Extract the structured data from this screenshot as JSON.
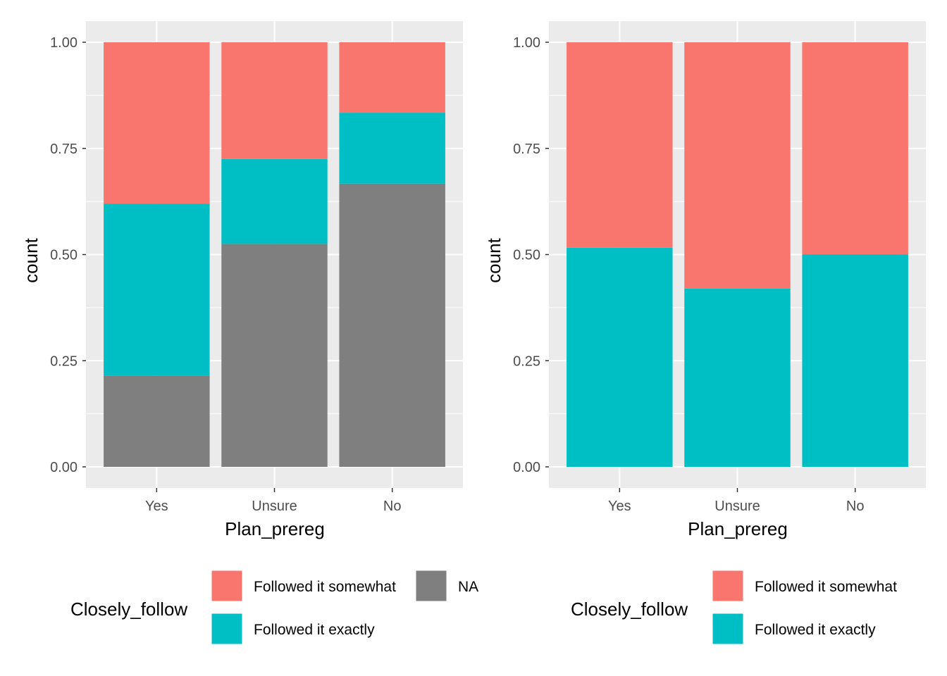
{
  "colors": {
    "somewhat": "#F8766D",
    "exactly": "#00BFC4",
    "na": "#7F7F7F",
    "panel_bg": "#EBEBEB",
    "grid": "#FFFFFF",
    "axis_text": "#4D4D4D"
  },
  "chart_data": [
    {
      "type": "bar",
      "stacked": true,
      "position": "fill",
      "title": "",
      "xlabel": "Plan_prereg",
      "ylabel": "count",
      "ylim": [
        0,
        1
      ],
      "yticks": [
        "0.00",
        "0.25",
        "0.50",
        "0.75",
        "1.00"
      ],
      "ytick_values": [
        0,
        0.25,
        0.5,
        0.75,
        1.0
      ],
      "categories": [
        "Yes",
        "Unsure",
        "No"
      ],
      "grid": true,
      "series": [
        {
          "name": "NA",
          "color_key": "na",
          "values": [
            0.215,
            0.525,
            0.667
          ]
        },
        {
          "name": "Followed it exactly",
          "color_key": "exactly",
          "values": [
            0.405,
            0.2,
            0.167
          ]
        },
        {
          "name": "Followed it somewhat",
          "color_key": "somewhat",
          "values": [
            0.38,
            0.275,
            0.166
          ]
        }
      ],
      "legend": {
        "position": "bottom",
        "title": "Closely_follow",
        "entries": [
          {
            "label": "Followed it somewhat",
            "color_key": "somewhat"
          },
          {
            "label": "Followed it exactly",
            "color_key": "exactly"
          },
          {
            "label": "NA",
            "color_key": "na"
          }
        ]
      }
    },
    {
      "type": "bar",
      "stacked": true,
      "position": "fill",
      "title": "",
      "xlabel": "Plan_prereg",
      "ylabel": "count",
      "ylim": [
        0,
        1
      ],
      "yticks": [
        "0.00",
        "0.25",
        "0.50",
        "0.75",
        "1.00"
      ],
      "ytick_values": [
        0,
        0.25,
        0.5,
        0.75,
        1.0
      ],
      "categories": [
        "Yes",
        "Unsure",
        "No"
      ],
      "grid": true,
      "series": [
        {
          "name": "Followed it exactly",
          "color_key": "exactly",
          "values": [
            0.516,
            0.42,
            0.5
          ]
        },
        {
          "name": "Followed it somewhat",
          "color_key": "somewhat",
          "values": [
            0.484,
            0.58,
            0.5
          ]
        }
      ],
      "legend": {
        "position": "bottom",
        "title": "Closely_follow",
        "entries": [
          {
            "label": "Followed it somewhat",
            "color_key": "somewhat"
          },
          {
            "label": "Followed it exactly",
            "color_key": "exactly"
          }
        ]
      }
    }
  ]
}
